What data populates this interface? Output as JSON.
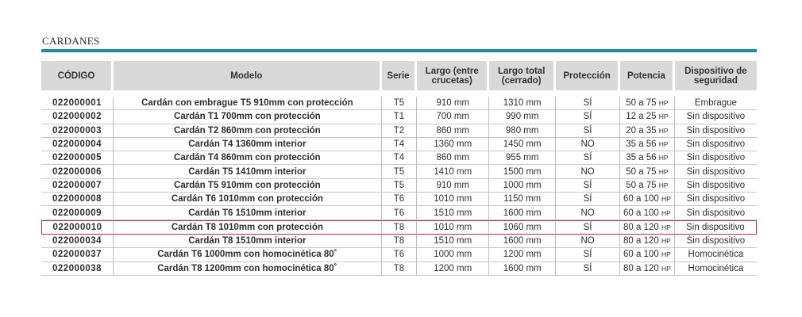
{
  "section": {
    "title": "CARDANES"
  },
  "colors": {
    "accent_rule": "#1e8b9e",
    "header_bg": "#d9d9d9",
    "highlight_border": "#c62828"
  },
  "table": {
    "headers": {
      "codigo": "CÓDIGO",
      "modelo": "Modelo",
      "serie": "Serie",
      "largo_entre": "Largo (entre crucetas)",
      "largo_total": "Largo total (cerrado)",
      "proteccion": "Protección",
      "potencia": "Potencia",
      "dispositivo": "Dispositivo de seguridad"
    },
    "highlighted_row_index": 9,
    "rows": [
      {
        "codigo": "022000001",
        "modelo": "Cardán con embrague T5 910mm con protección",
        "serie": "T5",
        "largo_entre": "910 mm",
        "largo_total": "1310 mm",
        "proteccion": "SÍ",
        "potencia": "50 a 75",
        "unit": "HP",
        "dispositivo": "Embrague"
      },
      {
        "codigo": "022000002",
        "modelo": "Cardán T1 700mm con protección",
        "serie": "T1",
        "largo_entre": "700 mm",
        "largo_total": "990 mm",
        "proteccion": "SÍ",
        "potencia": "12 a 25",
        "unit": "HP",
        "dispositivo": "Sin dispositivo"
      },
      {
        "codigo": "022000003",
        "modelo": "Cardán T2 860mm con protección",
        "serie": "T2",
        "largo_entre": "860 mm",
        "largo_total": "980 mm",
        "proteccion": "SÍ",
        "potencia": "20 a 35",
        "unit": "HP",
        "dispositivo": "Sin dispositivo"
      },
      {
        "codigo": "022000004",
        "modelo": "Cardán T4 1360mm interior",
        "serie": "T4",
        "largo_entre": "1360 mm",
        "largo_total": "1450 mm",
        "proteccion": "NO",
        "potencia": "35 a 56",
        "unit": "HP",
        "dispositivo": "Sin dispositivo"
      },
      {
        "codigo": "022000005",
        "modelo": "Cardán T4 860mm con protección",
        "serie": "T4",
        "largo_entre": "860 mm",
        "largo_total": "955 mm",
        "proteccion": "SÍ",
        "potencia": "35 a 56",
        "unit": "HP",
        "dispositivo": "Sin dispositivo"
      },
      {
        "codigo": "022000006",
        "modelo": "Cardán T5 1410mm interior",
        "serie": "T5",
        "largo_entre": "1410 mm",
        "largo_total": "1500 mm",
        "proteccion": "NO",
        "potencia": "50 a 75",
        "unit": "HP",
        "dispositivo": "Sin dispositivo"
      },
      {
        "codigo": "022000007",
        "modelo": "Cardán T5 910mm con protección",
        "serie": "T5",
        "largo_entre": "910 mm",
        "largo_total": "1000 mm",
        "proteccion": "SÍ",
        "potencia": "50 a 75",
        "unit": "HP",
        "dispositivo": "Sin dispositivo"
      },
      {
        "codigo": "022000008",
        "modelo": "Cardán T6 1010mm con protección",
        "serie": "T6",
        "largo_entre": "1010 mm",
        "largo_total": "1150 mm",
        "proteccion": "SÍ",
        "potencia": "60 a 100",
        "unit": "HP",
        "dispositivo": "Sin dispositivo"
      },
      {
        "codigo": "022000009",
        "modelo": "Cardán T6 1510mm interior",
        "serie": "T6",
        "largo_entre": "1510 mm",
        "largo_total": "1600 mm",
        "proteccion": "NO",
        "potencia": "60 a 100",
        "unit": "HP",
        "dispositivo": "Sin dispositivo"
      },
      {
        "codigo": "022000010",
        "modelo": "Cardán T8 1010mm con protección",
        "serie": "T8",
        "largo_entre": "1010 mm",
        "largo_total": "1060 mm",
        "proteccion": "SÍ",
        "potencia": "80 a 120",
        "unit": "HP",
        "dispositivo": "Sin dispositivo"
      },
      {
        "codigo": "022000034",
        "modelo": "Cardán T8 1510mm interior",
        "serie": "T8",
        "largo_entre": "1510 mm",
        "largo_total": "1600 mm",
        "proteccion": "NO",
        "potencia": "80 a 120",
        "unit": "HP",
        "dispositivo": "Sin dispositivo"
      },
      {
        "codigo": "022000037",
        "modelo": "Cardán T6 1000mm con homocinética 80˚",
        "serie": "T6",
        "largo_entre": "1000 mm",
        "largo_total": "1200 mm",
        "proteccion": "SÍ",
        "potencia": "60 a 100",
        "unit": "HP",
        "dispositivo": "Homocinética"
      },
      {
        "codigo": "022000038",
        "modelo": "Cardán T8 1200mm con homocinética 80˚",
        "serie": "T8",
        "largo_entre": "1200 mm",
        "largo_total": "1600 mm",
        "proteccion": "SÍ",
        "potencia": "80 a 120",
        "unit": "HP",
        "dispositivo": "Homocinética"
      }
    ]
  }
}
